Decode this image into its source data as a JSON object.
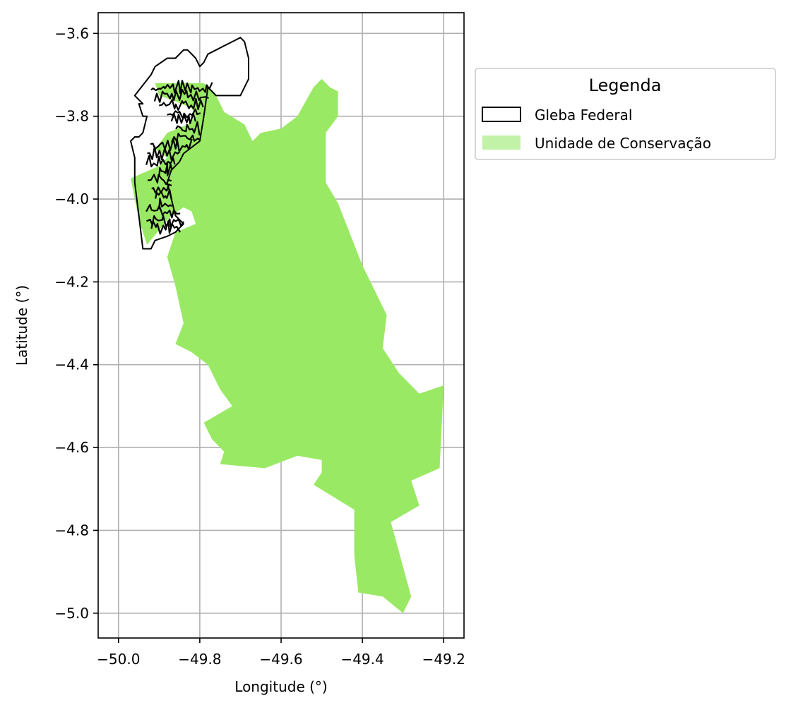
{
  "chart_data": {
    "type": "map",
    "xlabel": "Longitude (°)",
    "ylabel": "Latitude (°)",
    "xlim": [
      -50.05,
      -49.15
    ],
    "ylim": [
      -5.06,
      -3.55
    ],
    "grid": true,
    "x_ticks": [
      {
        "value": -50.0,
        "label": "−50.0"
      },
      {
        "value": -49.8,
        "label": "−49.8"
      },
      {
        "value": -49.6,
        "label": "−49.6"
      },
      {
        "value": -49.4,
        "label": "−49.4"
      },
      {
        "value": -49.2,
        "label": "−49.2"
      }
    ],
    "y_ticks": [
      {
        "value": -3.6,
        "label": "−3.6"
      },
      {
        "value": -3.8,
        "label": "−3.8"
      },
      {
        "value": -4.0,
        "label": "−4.0"
      },
      {
        "value": -4.2,
        "label": "−4.2"
      },
      {
        "value": -4.4,
        "label": "−4.4"
      },
      {
        "value": -4.6,
        "label": "−4.6"
      },
      {
        "value": -4.8,
        "label": "−4.8"
      },
      {
        "value": -5.0,
        "label": "−5.0"
      }
    ],
    "legend": {
      "title": "Legenda",
      "placement": "outside-right-top",
      "entries": [
        {
          "label": "Gleba Federal",
          "style": "outline",
          "edge": "#000000",
          "fill": "#ffffff"
        },
        {
          "label": "Unidade de Conservação",
          "style": "fill",
          "fill": "#c2f2a8"
        }
      ]
    },
    "colors": {
      "conservation_fill": "#9ae964",
      "gleba_edge": "#000000",
      "grid": "#b0b0b0"
    },
    "layers": [
      {
        "name": "Unidade de Conservação",
        "kind": "polygon",
        "coords": [
          [
            -49.91,
            -3.72
          ],
          [
            -49.79,
            -3.72
          ],
          [
            -49.76,
            -3.75
          ],
          [
            -49.74,
            -3.79
          ],
          [
            -49.69,
            -3.82
          ],
          [
            -49.67,
            -3.86
          ],
          [
            -49.65,
            -3.84
          ],
          [
            -49.6,
            -3.83
          ],
          [
            -49.56,
            -3.8
          ],
          [
            -49.52,
            -3.73
          ],
          [
            -49.5,
            -3.71
          ],
          [
            -49.48,
            -3.73
          ],
          [
            -49.46,
            -3.74
          ],
          [
            -49.46,
            -3.8
          ],
          [
            -49.49,
            -3.84
          ],
          [
            -49.49,
            -3.96
          ],
          [
            -49.46,
            -4.01
          ],
          [
            -49.4,
            -4.16
          ],
          [
            -49.34,
            -4.28
          ],
          [
            -49.35,
            -4.36
          ],
          [
            -49.31,
            -4.42
          ],
          [
            -49.26,
            -4.47
          ],
          [
            -49.2,
            -4.45
          ],
          [
            -49.21,
            -4.65
          ],
          [
            -49.28,
            -4.68
          ],
          [
            -49.26,
            -4.74
          ],
          [
            -49.33,
            -4.78
          ],
          [
            -49.28,
            -4.96
          ],
          [
            -49.3,
            -5.0
          ],
          [
            -49.35,
            -4.96
          ],
          [
            -49.41,
            -4.95
          ],
          [
            -49.42,
            -4.86
          ],
          [
            -49.42,
            -4.75
          ],
          [
            -49.47,
            -4.72
          ],
          [
            -49.52,
            -4.69
          ],
          [
            -49.5,
            -4.66
          ],
          [
            -49.5,
            -4.63
          ],
          [
            -49.56,
            -4.62
          ],
          [
            -49.64,
            -4.65
          ],
          [
            -49.75,
            -4.64
          ],
          [
            -49.74,
            -4.61
          ],
          [
            -49.77,
            -4.58
          ],
          [
            -49.79,
            -4.54
          ],
          [
            -49.72,
            -4.5
          ],
          [
            -49.75,
            -4.46
          ],
          [
            -49.78,
            -4.4
          ],
          [
            -49.82,
            -4.37
          ],
          [
            -49.86,
            -4.35
          ],
          [
            -49.84,
            -4.3
          ],
          [
            -49.86,
            -4.21
          ],
          [
            -49.88,
            -4.14
          ],
          [
            -49.86,
            -4.08
          ],
          [
            -49.81,
            -4.06
          ],
          [
            -49.82,
            -4.03
          ],
          [
            -49.84,
            -4.02
          ],
          [
            -49.87,
            -4.04
          ],
          [
            -49.93,
            -4.11
          ],
          [
            -49.95,
            -4.05
          ],
          [
            -49.97,
            -3.95
          ],
          [
            -49.9,
            -3.92
          ],
          [
            -49.88,
            -3.9
          ],
          [
            -49.91,
            -3.88
          ],
          [
            -49.88,
            -3.84
          ],
          [
            -49.83,
            -3.82
          ],
          [
            -49.81,
            -3.8
          ],
          [
            -49.82,
            -3.78
          ],
          [
            -49.87,
            -3.76
          ],
          [
            -49.9,
            -3.75
          ]
        ]
      },
      {
        "name": "Gleba Federal",
        "kind": "outline",
        "coords": [
          [
            -49.97,
            -3.86
          ],
          [
            -49.96,
            -3.85
          ],
          [
            -49.95,
            -3.85
          ],
          [
            -49.94,
            -3.84
          ],
          [
            -49.93,
            -3.8
          ],
          [
            -49.94,
            -3.8
          ],
          [
            -49.95,
            -3.77
          ],
          [
            -49.94,
            -3.77
          ],
          [
            -49.96,
            -3.75
          ],
          [
            -49.92,
            -3.7
          ],
          [
            -49.91,
            -3.68
          ],
          [
            -49.88,
            -3.66
          ],
          [
            -49.86,
            -3.66
          ],
          [
            -49.84,
            -3.64
          ],
          [
            -49.83,
            -3.64
          ],
          [
            -49.81,
            -3.66
          ],
          [
            -49.8,
            -3.68
          ],
          [
            -49.79,
            -3.67
          ],
          [
            -49.78,
            -3.65
          ],
          [
            -49.76,
            -3.64
          ],
          [
            -49.74,
            -3.63
          ],
          [
            -49.72,
            -3.62
          ],
          [
            -49.7,
            -3.61
          ],
          [
            -49.69,
            -3.62
          ],
          [
            -49.68,
            -3.66
          ],
          [
            -49.68,
            -3.71
          ],
          [
            -49.69,
            -3.73
          ],
          [
            -49.7,
            -3.75
          ],
          [
            -49.73,
            -3.75
          ],
          [
            -49.76,
            -3.75
          ],
          [
            -49.77,
            -3.74
          ],
          [
            -49.78,
            -3.73
          ],
          [
            -49.79,
            -3.8
          ],
          [
            -49.8,
            -3.86
          ],
          [
            -49.84,
            -3.89
          ],
          [
            -49.85,
            -3.91
          ],
          [
            -49.87,
            -3.93
          ],
          [
            -49.88,
            -3.96
          ],
          [
            -49.87,
            -4.0
          ],
          [
            -49.86,
            -4.04
          ],
          [
            -49.84,
            -4.06
          ],
          [
            -49.86,
            -4.08
          ],
          [
            -49.88,
            -4.09
          ],
          [
            -49.91,
            -4.1
          ],
          [
            -49.92,
            -4.12
          ],
          [
            -49.94,
            -4.12
          ],
          [
            -49.95,
            -4.04
          ],
          [
            -49.96,
            -3.96
          ],
          [
            -49.96,
            -3.9
          ]
        ]
      }
    ]
  }
}
